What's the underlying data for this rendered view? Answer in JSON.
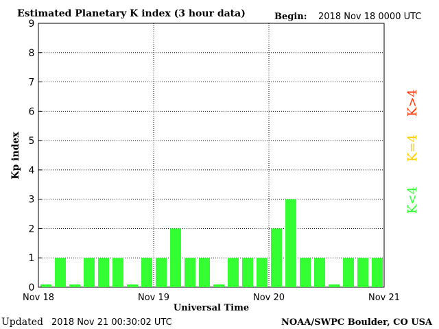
{
  "header": {
    "title": "Estimated Planetary K index (3 hour data)",
    "begin_label": "Begin:",
    "begin_value": "2018 Nov 18 0000 UTC"
  },
  "footer": {
    "updated_label": "Updated",
    "updated_value": "2018 Nov 21 00:30:02 UTC",
    "credit": "NOAA/SWPC Boulder, CO USA"
  },
  "legend": {
    "high": {
      "text": "K>4",
      "color": "#ff3300"
    },
    "equal": {
      "text": "K=4",
      "color": "#ffcc00"
    },
    "low": {
      "text": "K<4",
      "color": "#33ff33"
    }
  },
  "chart_data": {
    "type": "bar",
    "title": "Estimated Planetary K index (3 hour data)",
    "xlabel": "Universal Time",
    "ylabel": "Kp index",
    "ylim": [
      0,
      9
    ],
    "yticks": [
      0,
      1,
      2,
      3,
      4,
      5,
      6,
      7,
      8,
      9
    ],
    "xtick_labels": [
      "Nov 18",
      "Nov 19",
      "Nov 20",
      "Nov 21"
    ],
    "grid": true,
    "bar_color": "#33ff33",
    "values": [
      0,
      1,
      0,
      1,
      1,
      1,
      0,
      1,
      1,
      2,
      1,
      1,
      0,
      1,
      1,
      1,
      2,
      3,
      1,
      1,
      0,
      1,
      1,
      1
    ]
  }
}
